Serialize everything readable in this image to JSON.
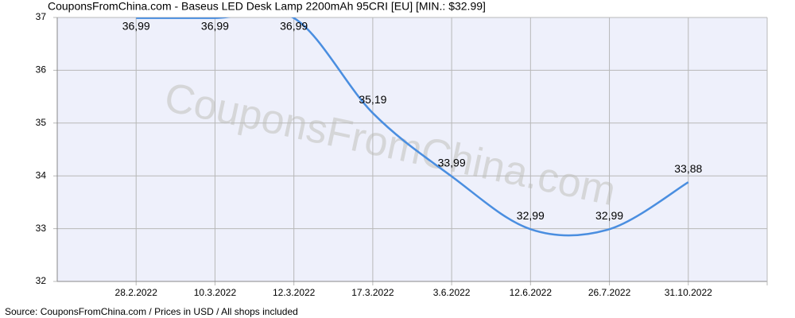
{
  "chart_data": {
    "type": "line",
    "title": "CouponsFromChina.com - Baseus LED Desk Lamp 2200mAh 95CRI [EU] [MIN.: $32.99]",
    "source": "Source: CouponsFromChina.com / Prices in USD / All shops included",
    "watermark": "CouponsFromChina.com",
    "categories": [
      "28.2.2022",
      "10.3.2022",
      "12.3.2022",
      "17.3.2022",
      "3.6.2022",
      "12.6.2022",
      "26.7.2022",
      "31.10.2022"
    ],
    "series": [
      {
        "name": "Price",
        "color": "#4a8ee0",
        "values": [
          36.99,
          36.99,
          36.99,
          35.19,
          33.99,
          32.99,
          32.99,
          33.88
        ],
        "value_labels": [
          "36,99",
          "36,99",
          "36,99",
          "35,19",
          "33,99",
          "32,99",
          "32,99",
          "33,88"
        ]
      }
    ],
    "ylim": [
      32,
      37
    ],
    "yticks": [
      32,
      33,
      34,
      35,
      36,
      37
    ],
    "grid": true
  }
}
